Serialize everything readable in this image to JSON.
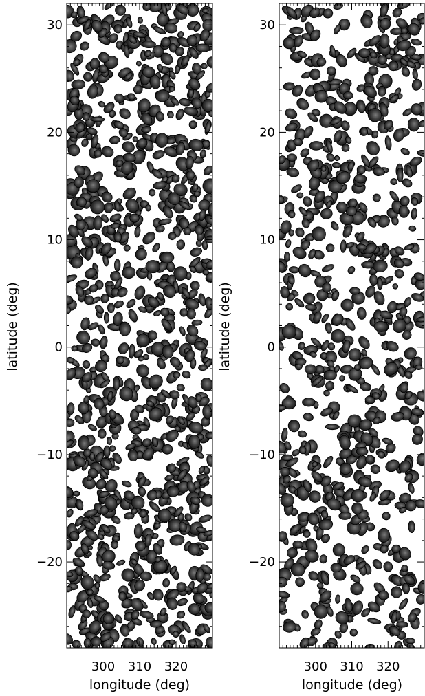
{
  "chart_data": [
    {
      "type": "heatmap",
      "xlabel": "longitude (deg)",
      "ylabel": "latitude (deg)",
      "xlim": [
        290,
        330
      ],
      "ylim": [
        -28,
        32
      ],
      "xticks": [
        300,
        310,
        320
      ],
      "yticks": [
        30,
        20,
        10,
        0,
        -10,
        -20
      ],
      "colormap": "grayscale, white background",
      "blob_density": 0.5
    },
    {
      "type": "heatmap",
      "xlabel": "longitude (deg)",
      "ylabel": "latitude (deg)",
      "xlim": [
        290,
        330
      ],
      "ylim": [
        -28,
        32
      ],
      "xticks": [
        300,
        310,
        320
      ],
      "yticks": [
        30,
        20,
        10,
        0,
        -10,
        -20
      ],
      "colormap": "grayscale, white background",
      "blob_density": 0.36
    }
  ]
}
